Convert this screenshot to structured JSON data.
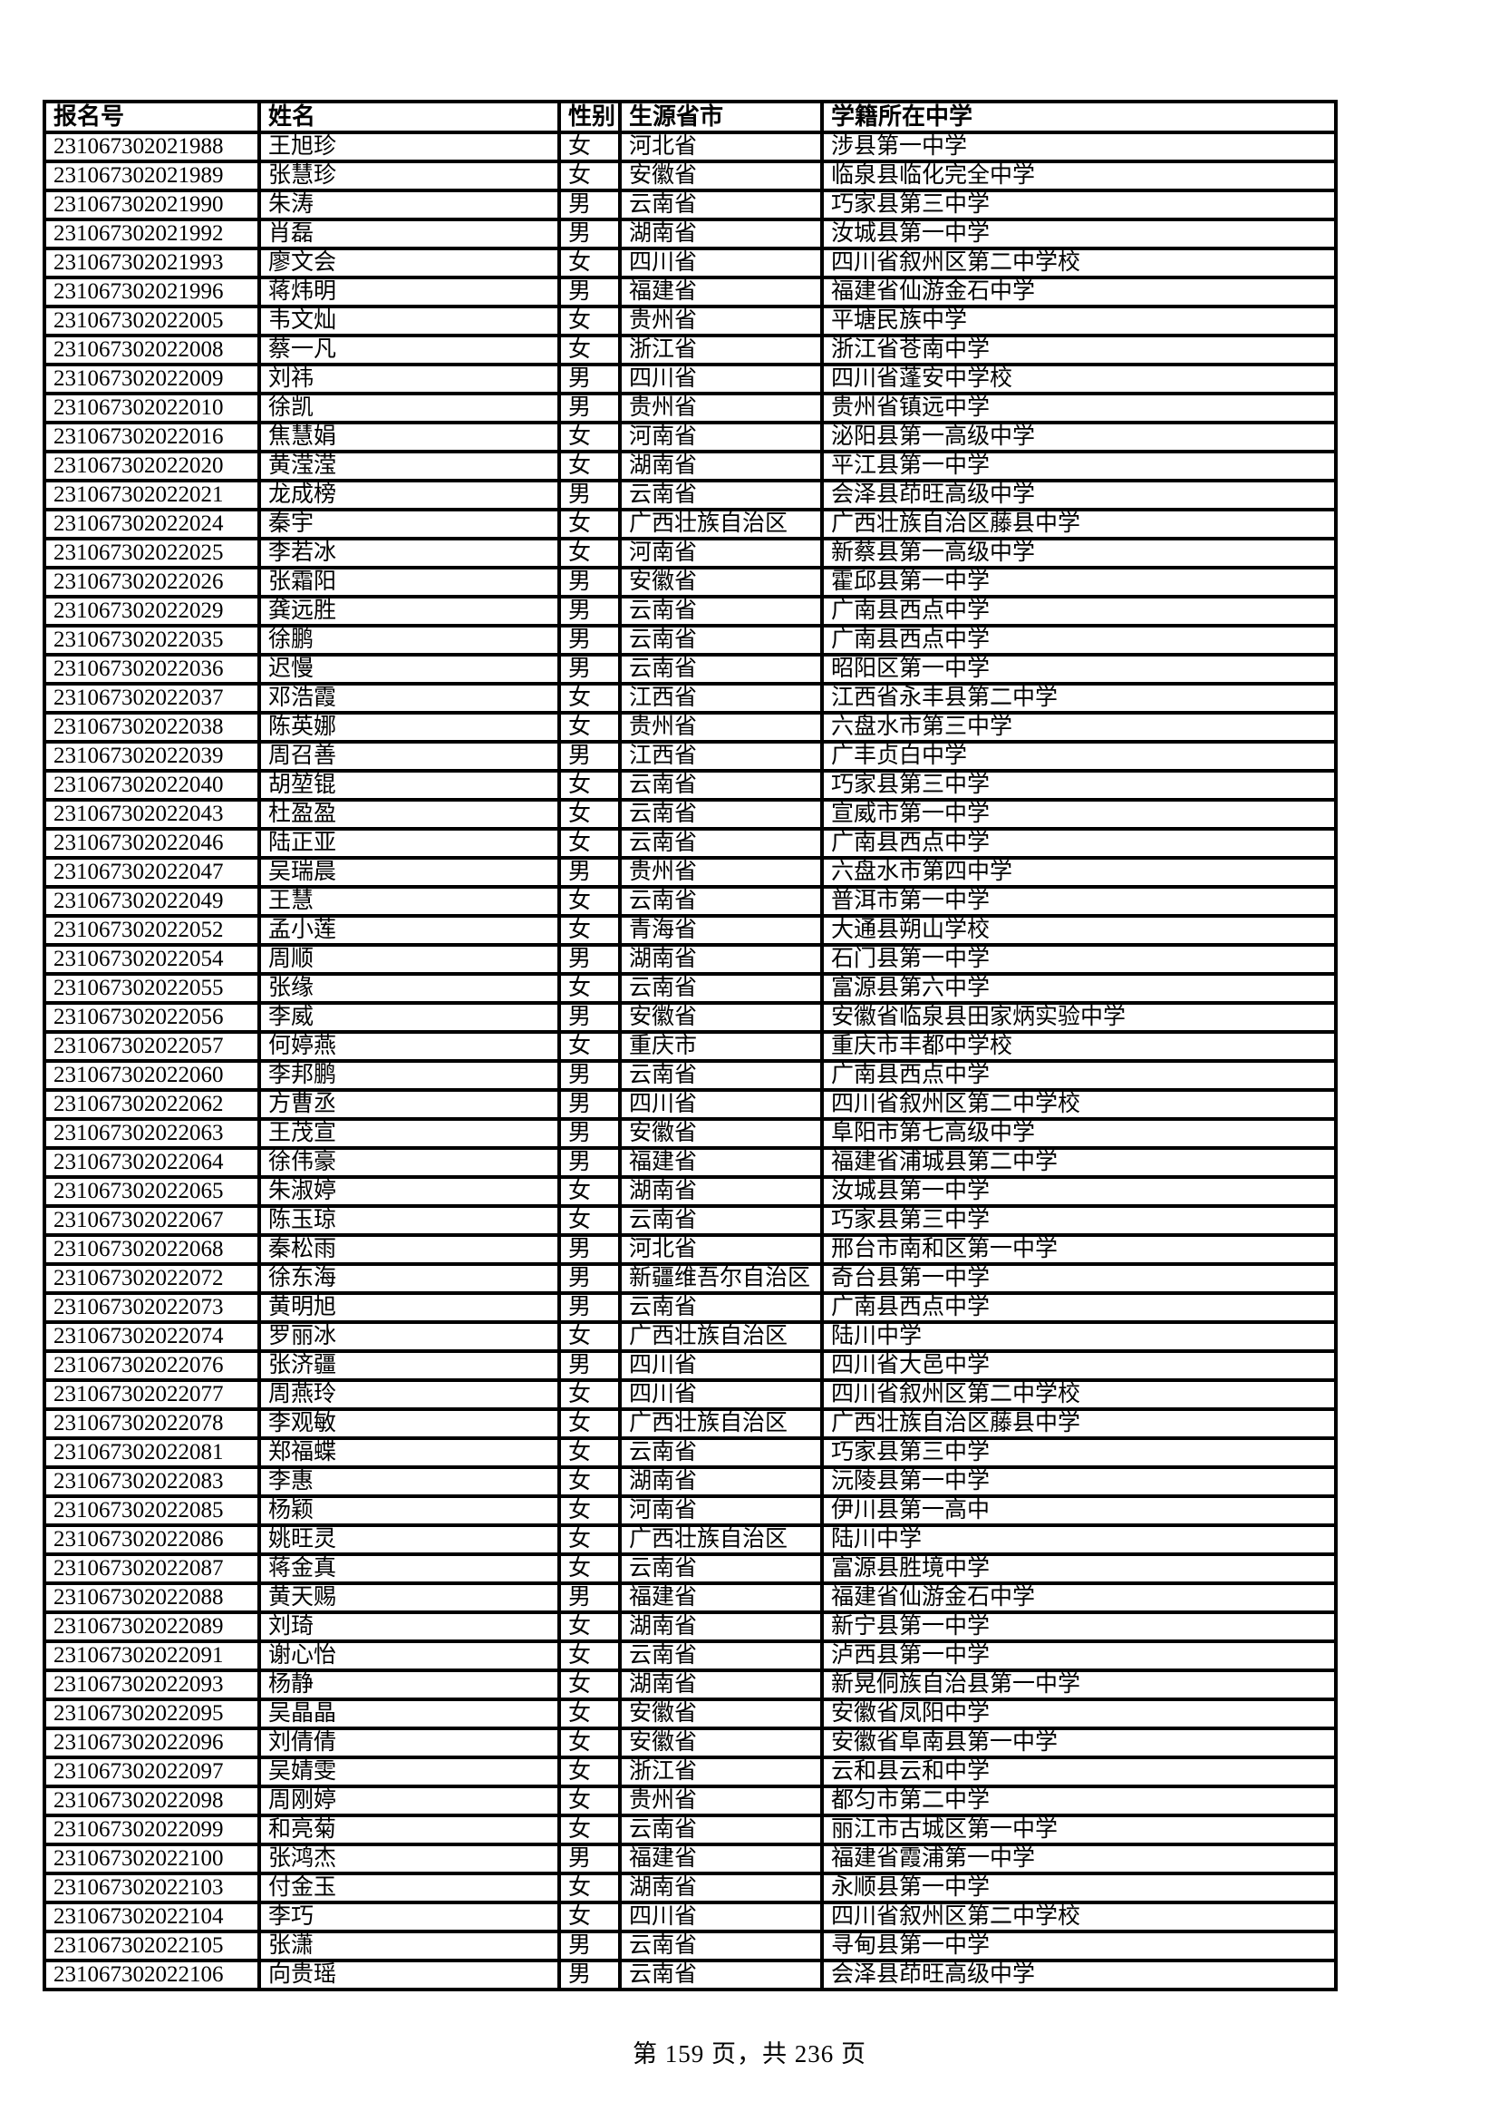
{
  "footer": {
    "text": "第 159 页，共 236 页"
  },
  "table": {
    "columns": [
      "报名号",
      "姓名",
      "性别",
      "生源省市",
      "学籍所在中学"
    ],
    "rows": [
      [
        "231067302021988",
        "王旭珍",
        "女",
        "河北省",
        "涉县第一中学"
      ],
      [
        "231067302021989",
        "张慧珍",
        "女",
        "安徽省",
        "临泉县临化完全中学"
      ],
      [
        "231067302021990",
        "朱涛",
        "男",
        "云南省",
        "巧家县第三中学"
      ],
      [
        "231067302021992",
        "肖磊",
        "男",
        "湖南省",
        "汝城县第一中学"
      ],
      [
        "231067302021993",
        "廖文会",
        "女",
        "四川省",
        "四川省叙州区第二中学校"
      ],
      [
        "231067302021996",
        "蒋炜明",
        "男",
        "福建省",
        "福建省仙游金石中学"
      ],
      [
        "231067302022005",
        "韦文灿",
        "女",
        "贵州省",
        "平塘民族中学"
      ],
      [
        "231067302022008",
        "蔡一凡",
        "女",
        "浙江省",
        "浙江省苍南中学"
      ],
      [
        "231067302022009",
        "刘祎",
        "男",
        "四川省",
        "四川省蓬安中学校"
      ],
      [
        "231067302022010",
        "徐凯",
        "男",
        "贵州省",
        "贵州省镇远中学"
      ],
      [
        "231067302022016",
        "焦慧娟",
        "女",
        "河南省",
        "泌阳县第一高级中学"
      ],
      [
        "231067302022020",
        "黄滢滢",
        "女",
        "湖南省",
        "平江县第一中学"
      ],
      [
        "231067302022021",
        "龙成榜",
        "男",
        "云南省",
        "会泽县茚旺高级中学"
      ],
      [
        "231067302022024",
        "秦宇",
        "女",
        "广西壮族自治区",
        "广西壮族自治区藤县中学"
      ],
      [
        "231067302022025",
        "李若冰",
        "女",
        "河南省",
        "新蔡县第一高级中学"
      ],
      [
        "231067302022026",
        "张霜阳",
        "男",
        "安徽省",
        "霍邱县第一中学"
      ],
      [
        "231067302022029",
        "龚远胜",
        "男",
        "云南省",
        "广南县西点中学"
      ],
      [
        "231067302022035",
        "徐鹏",
        "男",
        "云南省",
        "广南县西点中学"
      ],
      [
        "231067302022036",
        "迟慢",
        "男",
        "云南省",
        "昭阳区第一中学"
      ],
      [
        "231067302022037",
        "邓浩霞",
        "女",
        "江西省",
        "江西省永丰县第二中学"
      ],
      [
        "231067302022038",
        "陈英娜",
        "女",
        "贵州省",
        "六盘水市第三中学"
      ],
      [
        "231067302022039",
        "周召善",
        "男",
        "江西省",
        "广丰贞白中学"
      ],
      [
        "231067302022040",
        "胡堃锟",
        "女",
        "云南省",
        "巧家县第三中学"
      ],
      [
        "231067302022043",
        "杜盈盈",
        "女",
        "云南省",
        "宣威市第一中学"
      ],
      [
        "231067302022046",
        "陆正亚",
        "女",
        "云南省",
        "广南县西点中学"
      ],
      [
        "231067302022047",
        "吴瑞晨",
        "男",
        "贵州省",
        "六盘水市第四中学"
      ],
      [
        "231067302022049",
        "王慧",
        "女",
        "云南省",
        "普洱市第一中学"
      ],
      [
        "231067302022052",
        "孟小莲",
        "女",
        "青海省",
        "大通县朔山学校"
      ],
      [
        "231067302022054",
        "周顺",
        "男",
        "湖南省",
        "石门县第一中学"
      ],
      [
        "231067302022055",
        "张缘",
        "女",
        "云南省",
        "富源县第六中学"
      ],
      [
        "231067302022056",
        "李威",
        "男",
        "安徽省",
        "安徽省临泉县田家炳实验中学"
      ],
      [
        "231067302022057",
        "何婷燕",
        "女",
        "重庆市",
        "重庆市丰都中学校"
      ],
      [
        "231067302022060",
        "李邦鹏",
        "男",
        "云南省",
        "广南县西点中学"
      ],
      [
        "231067302022062",
        "方曹丞",
        "男",
        "四川省",
        "四川省叙州区第二中学校"
      ],
      [
        "231067302022063",
        "王茂宣",
        "男",
        "安徽省",
        "阜阳市第七高级中学"
      ],
      [
        "231067302022064",
        "徐伟豪",
        "男",
        "福建省",
        "福建省浦城县第二中学"
      ],
      [
        "231067302022065",
        "朱淑婷",
        "女",
        "湖南省",
        "汝城县第一中学"
      ],
      [
        "231067302022067",
        "陈玉琼",
        "女",
        "云南省",
        "巧家县第三中学"
      ],
      [
        "231067302022068",
        "秦松雨",
        "男",
        "河北省",
        "邢台市南和区第一中学"
      ],
      [
        "231067302022072",
        "徐东海",
        "男",
        "新疆维吾尔自治区",
        "奇台县第一中学"
      ],
      [
        "231067302022073",
        "黄明旭",
        "男",
        "云南省",
        "广南县西点中学"
      ],
      [
        "231067302022074",
        "罗丽冰",
        "女",
        "广西壮族自治区",
        "陆川中学"
      ],
      [
        "231067302022076",
        "张济疆",
        "男",
        "四川省",
        "四川省大邑中学"
      ],
      [
        "231067302022077",
        "周燕玲",
        "女",
        "四川省",
        "四川省叙州区第二中学校"
      ],
      [
        "231067302022078",
        "李观敏",
        "女",
        "广西壮族自治区",
        "广西壮族自治区藤县中学"
      ],
      [
        "231067302022081",
        "郑福蝶",
        "女",
        "云南省",
        "巧家县第三中学"
      ],
      [
        "231067302022083",
        "李惠",
        "女",
        "湖南省",
        "沅陵县第一中学"
      ],
      [
        "231067302022085",
        "杨颖",
        "女",
        "河南省",
        "伊川县第一高中"
      ],
      [
        "231067302022086",
        "姚旺灵",
        "女",
        "广西壮族自治区",
        "陆川中学"
      ],
      [
        "231067302022087",
        "蒋金真",
        "女",
        "云南省",
        "富源县胜境中学"
      ],
      [
        "231067302022088",
        "黄天赐",
        "男",
        "福建省",
        "福建省仙游金石中学"
      ],
      [
        "231067302022089",
        "刘琦",
        "女",
        "湖南省",
        "新宁县第一中学"
      ],
      [
        "231067302022091",
        "谢心怡",
        "女",
        "云南省",
        "泸西县第一中学"
      ],
      [
        "231067302022093",
        "杨静",
        "女",
        "湖南省",
        "新晃侗族自治县第一中学"
      ],
      [
        "231067302022095",
        "吴晶晶",
        "女",
        "安徽省",
        "安徽省凤阳中学"
      ],
      [
        "231067302022096",
        "刘倩倩",
        "女",
        "安徽省",
        "安徽省阜南县第一中学"
      ],
      [
        "231067302022097",
        "吴婧雯",
        "女",
        "浙江省",
        "云和县云和中学"
      ],
      [
        "231067302022098",
        "周刚婷",
        "女",
        "贵州省",
        "都匀市第二中学"
      ],
      [
        "231067302022099",
        "和亮菊",
        "女",
        "云南省",
        "丽江市古城区第一中学"
      ],
      [
        "231067302022100",
        "张鸿杰",
        "男",
        "福建省",
        "福建省霞浦第一中学"
      ],
      [
        "231067302022103",
        "付金玉",
        "女",
        "湖南省",
        "永顺县第一中学"
      ],
      [
        "231067302022104",
        "李巧",
        "女",
        "四川省",
        "四川省叙州区第二中学校"
      ],
      [
        "231067302022105",
        "张潇",
        "男",
        "云南省",
        "寻甸县第一中学"
      ],
      [
        "231067302022106",
        "向贵瑶",
        "男",
        "云南省",
        "会泽县茚旺高级中学"
      ]
    ]
  }
}
